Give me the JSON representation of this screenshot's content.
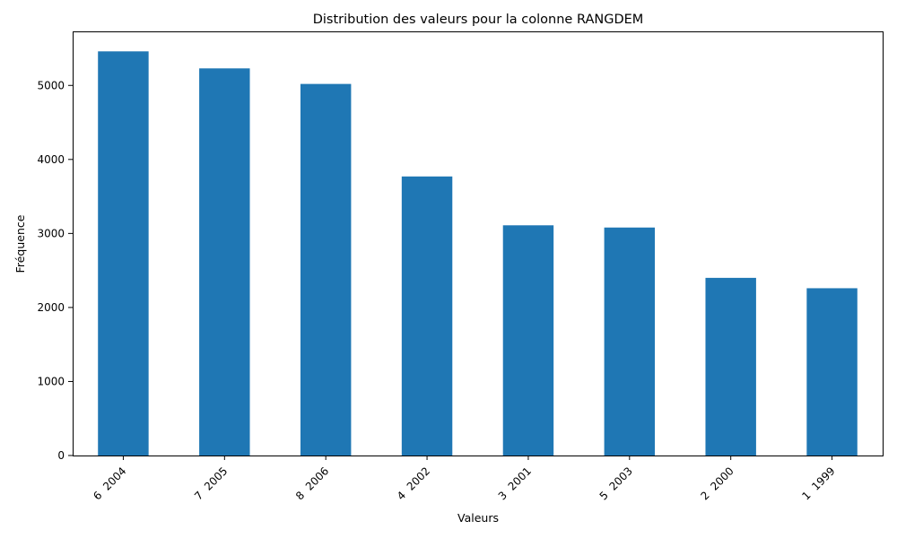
{
  "chart_data": {
    "type": "bar",
    "title": "Distribution des valeurs pour la colonne RANGDEM",
    "xlabel": "Valeurs",
    "ylabel": "Fréquence",
    "categories": [
      "6  2004",
      "7  2005",
      "8  2006",
      "4  2002",
      "3  2001",
      "5  2003",
      "2  2000",
      "1  1999"
    ],
    "values": [
      5460,
      5230,
      5020,
      3770,
      3110,
      3080,
      2400,
      2260
    ],
    "ylim": [
      0,
      5730
    ],
    "yticks": [
      0,
      1000,
      2000,
      3000,
      4000,
      5000
    ],
    "grid": false,
    "legend": "none",
    "bar_color": "#1f77b4"
  }
}
